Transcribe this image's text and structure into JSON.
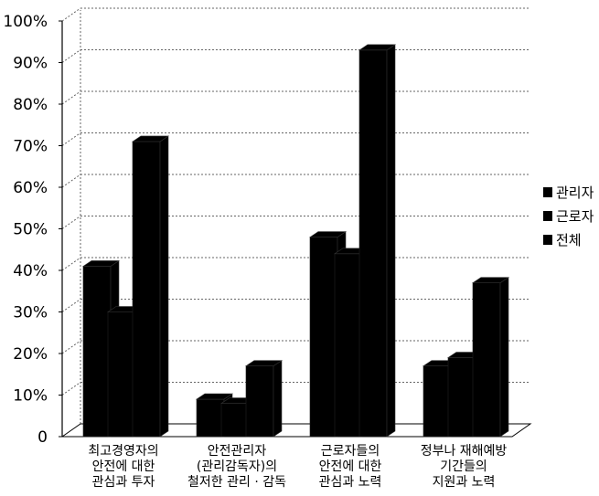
{
  "chart_data": {
    "type": "bar",
    "categories": [
      [
        "최고경영자의",
        "안전에 대한",
        "관심과 투자"
      ],
      [
        "안전관리자",
        "(관리감독자)의",
        "철저한 관리 · 감독"
      ],
      [
        "근로자들의",
        "안전에 대한",
        "관심과 노력"
      ],
      [
        "정부나 재해예방",
        "기간들의",
        "지원과 노력"
      ]
    ],
    "series": [
      {
        "name": "관리자",
        "values": [
          41,
          9,
          48,
          17
        ]
      },
      {
        "name": "근로자",
        "values": [
          30,
          8,
          44,
          19
        ]
      },
      {
        "name": "전체",
        "values": [
          71,
          17,
          93,
          37
        ]
      }
    ],
    "y_ticks": [
      "0",
      "10%",
      "20%",
      "30%",
      "40%",
      "50%",
      "60%",
      "70%",
      "80%",
      "90%",
      "100%"
    ],
    "ylim": [
      0,
      100
    ],
    "grid": true,
    "legend_position": "right",
    "colors": {
      "bar": "#000000",
      "grid": "#666666"
    }
  }
}
